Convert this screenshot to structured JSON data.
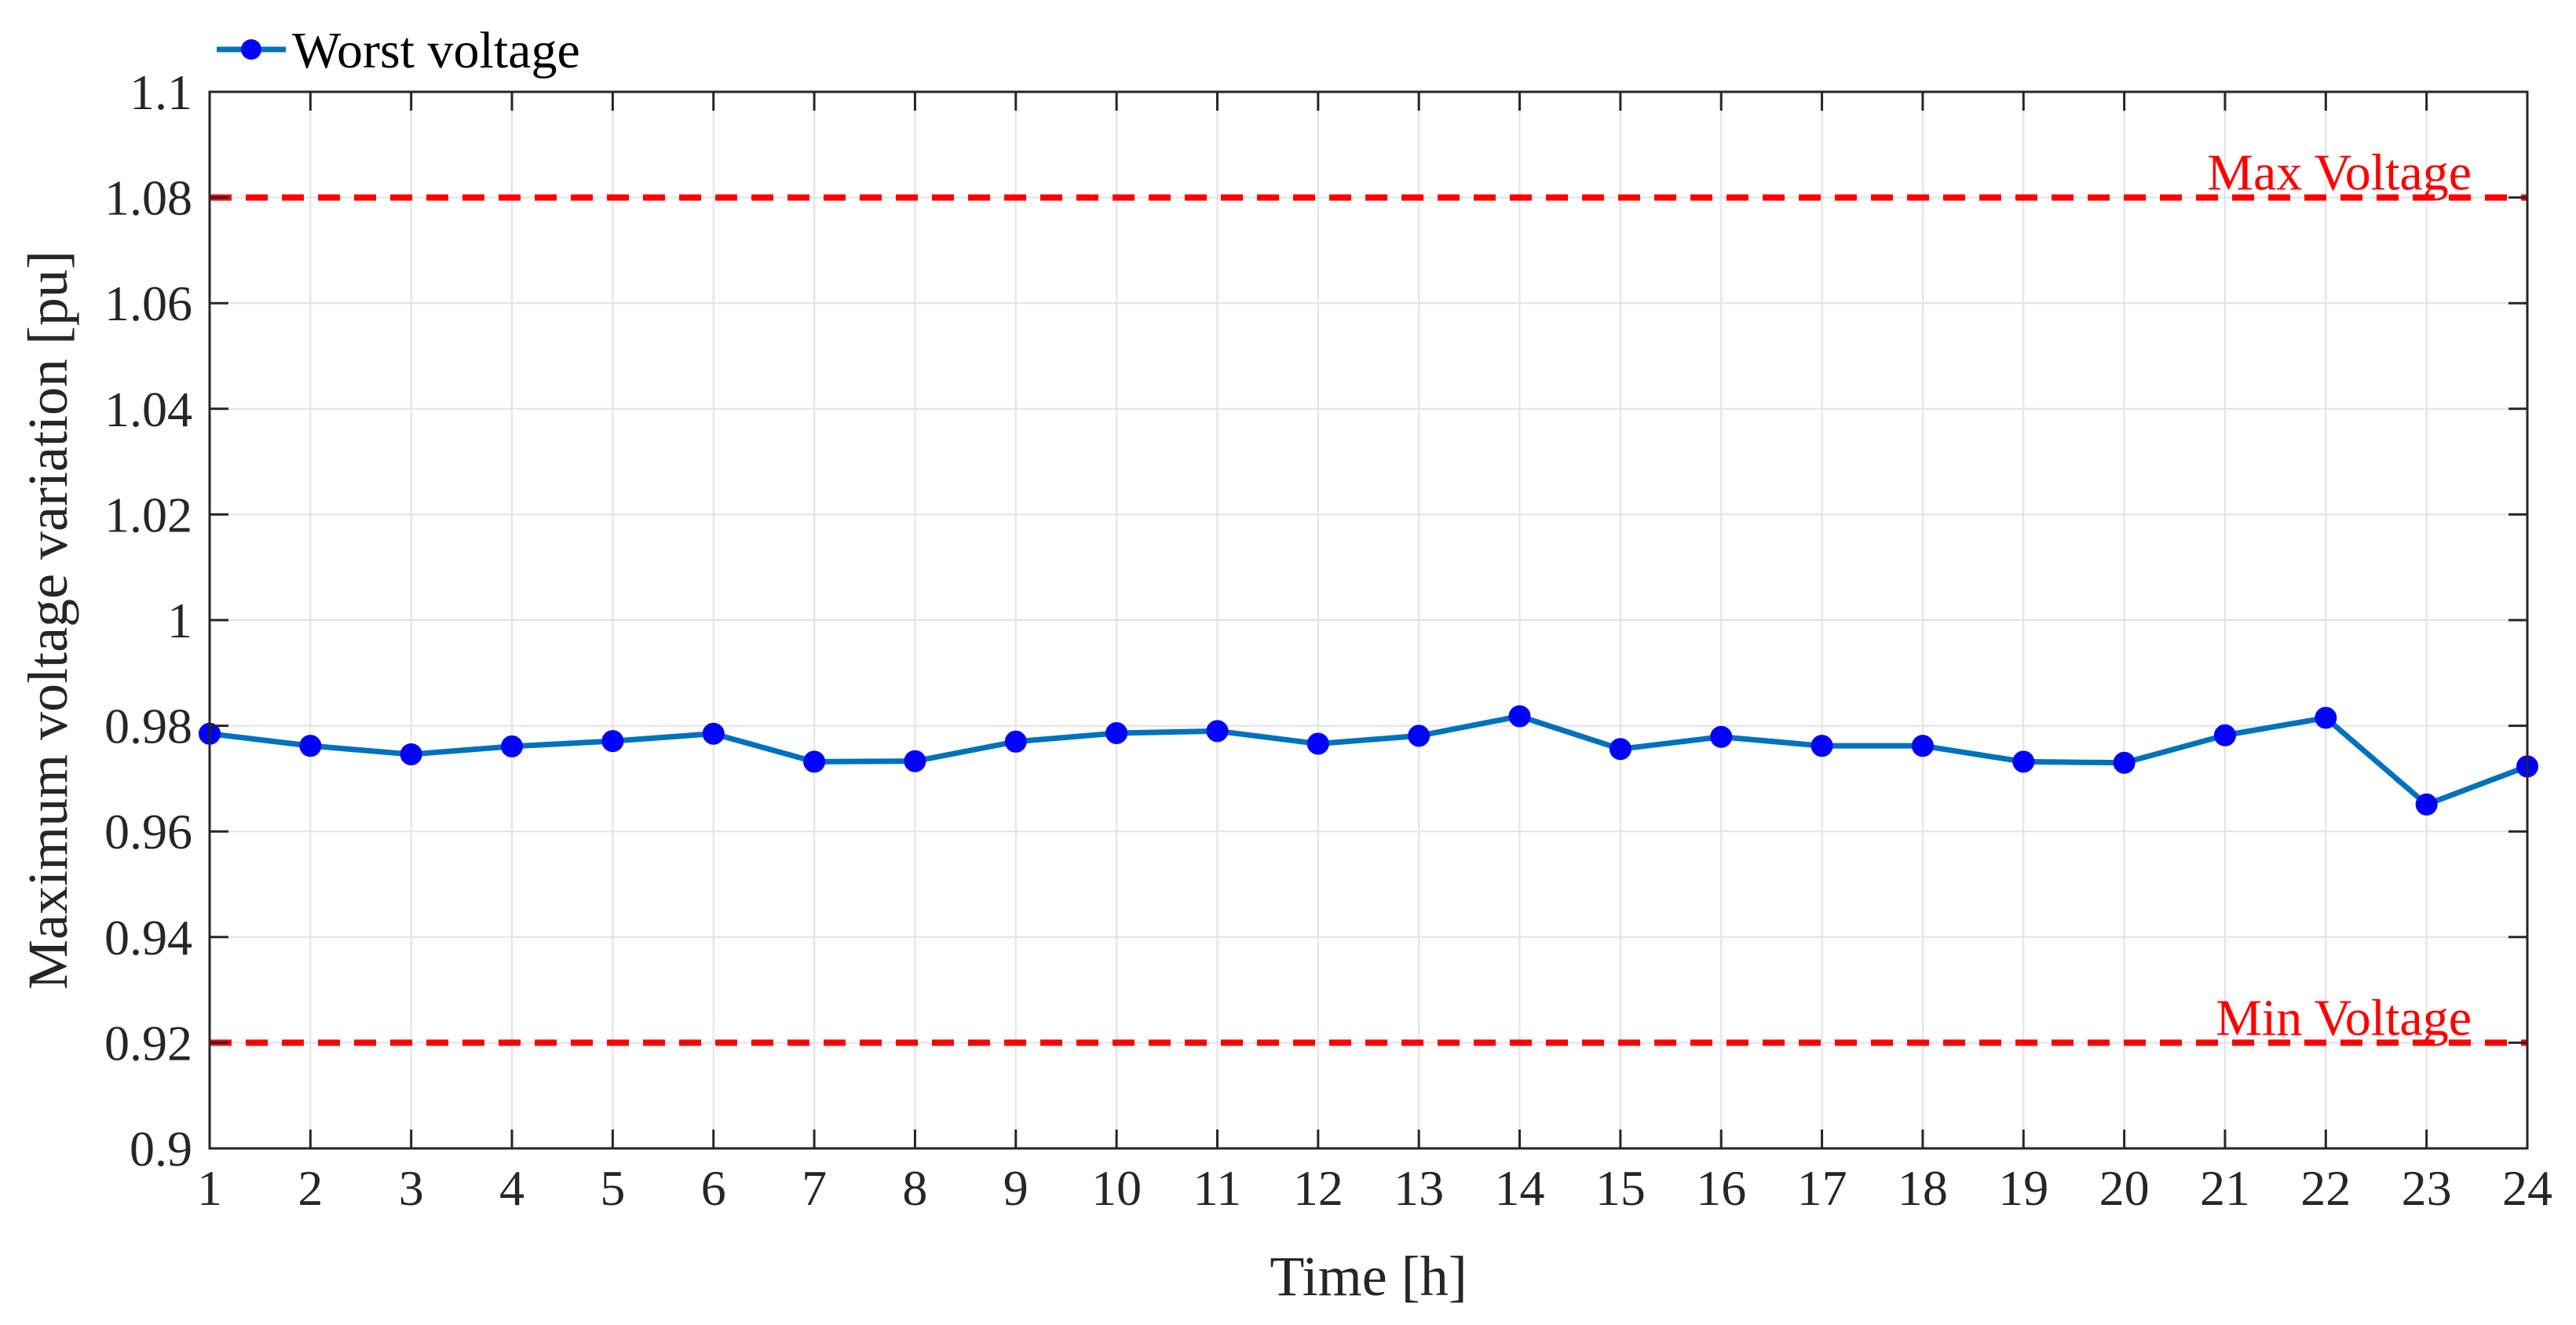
{
  "chart_data": {
    "type": "line",
    "title": "",
    "xlabel": "Time [h]",
    "ylabel": "Maximum voltage variation [pu]",
    "xlim": [
      1,
      24
    ],
    "ylim": [
      0.9,
      1.1
    ],
    "x_ticks": [
      1,
      2,
      3,
      4,
      5,
      6,
      7,
      8,
      9,
      10,
      11,
      12,
      13,
      14,
      15,
      16,
      17,
      18,
      19,
      20,
      21,
      22,
      23,
      24
    ],
    "y_ticks": [
      0.9,
      0.92,
      0.94,
      0.96,
      0.98,
      1.0,
      1.02,
      1.04,
      1.06,
      1.08,
      1.1
    ],
    "y_tick_labels": [
      "0.9",
      "0.92",
      "0.94",
      "0.96",
      "0.98",
      "1",
      "1.02",
      "1.04",
      "1.06",
      "1.08",
      "1.1"
    ],
    "grid": true,
    "legend_position": "top-left",
    "series": [
      {
        "name": "Worst voltage",
        "color": "#0072BD",
        "marker": "circle",
        "x": [
          1,
          2,
          3,
          4,
          5,
          6,
          7,
          8,
          9,
          10,
          11,
          12,
          13,
          14,
          15,
          16,
          17,
          18,
          19,
          20,
          21,
          22,
          23,
          24
        ],
        "values": [
          0.9785,
          0.9762,
          0.9746,
          0.9761,
          0.9771,
          0.9785,
          0.9732,
          0.9733,
          0.977,
          0.9786,
          0.979,
          0.9766,
          0.9781,
          0.9818,
          0.9756,
          0.9779,
          0.9762,
          0.9762,
          0.9732,
          0.973,
          0.9782,
          0.9815,
          0.9651,
          0.9723
        ]
      }
    ],
    "reference_lines": [
      {
        "label": "Max Voltage",
        "y": 1.08,
        "color": "#FF0000",
        "style": "dashed"
      },
      {
        "label": "Min Voltage",
        "y": 0.92,
        "color": "#FF0000",
        "style": "dashed"
      }
    ]
  }
}
